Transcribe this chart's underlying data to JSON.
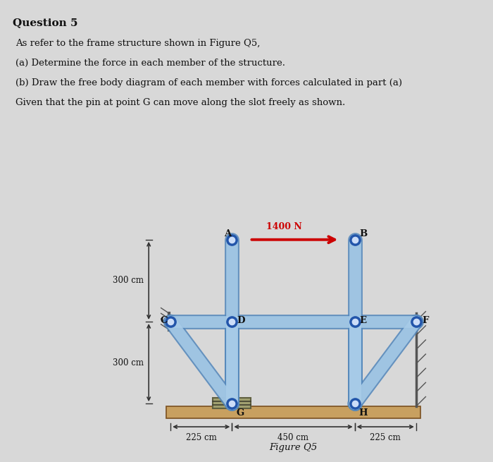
{
  "title": "Question 5",
  "lines": [
    "As refer to the frame structure shown in Figure Q5,",
    "(a) Determine the force in each member of the structure.",
    "(b) Draw the free body diagram of each member with forces calculated in part (a)",
    "Given that the pin at point G can move along the slot freely as shown."
  ],
  "fig_label": "Figure Q5",
  "force_label": "1400 N",
  "dim_labels": [
    "225 cm",
    "450 cm",
    "225 cm"
  ],
  "height_labels": [
    "300 cm",
    "300 cm"
  ],
  "bg_color": "#d8d8d8",
  "member_color": "#a8cce8",
  "member_edge_color": "#5588bb",
  "node_color": "#1a5fa8",
  "ground_color": "#c8a060",
  "slot_face_color": "#a0a070",
  "force_color": "#cc0000",
  "text_color": "#111111",
  "wall_color": "#888888"
}
